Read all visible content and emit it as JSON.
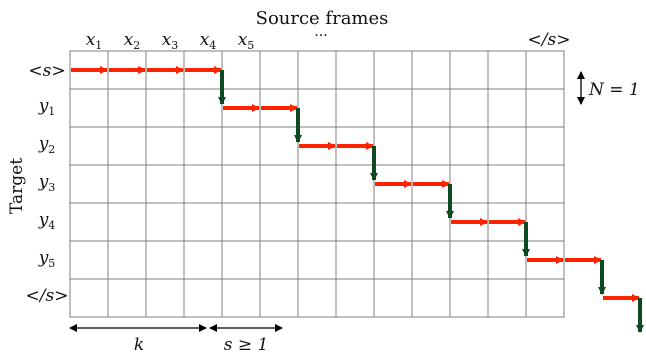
{
  "title": "Source frames",
  "y_axis_label": "Target",
  "source_labels": [
    "x",
    "x",
    "x",
    "x",
    "x"
  ],
  "source_subscripts": [
    "1",
    "2",
    "3",
    "4",
    "5"
  ],
  "source_ellipsis": "···",
  "source_eos": "</s>",
  "target_bos": "<s>",
  "target_labels": [
    "y",
    "y",
    "y",
    "y",
    "y"
  ],
  "target_subscripts": [
    "1",
    "2",
    "3",
    "4",
    "5"
  ],
  "target_eos": "</s>",
  "chunk_label": "N = 1",
  "wait_label": "k",
  "stride_label": "s ≥ 1",
  "colors": {
    "read_arrow": "#ff2200",
    "write_arrow": "#0d4a22",
    "grid": "#808080"
  },
  "policy": {
    "columns": 13,
    "rows": 7,
    "read_counts": [
      4,
      2,
      2,
      2,
      2,
      2,
      1
    ]
  }
}
